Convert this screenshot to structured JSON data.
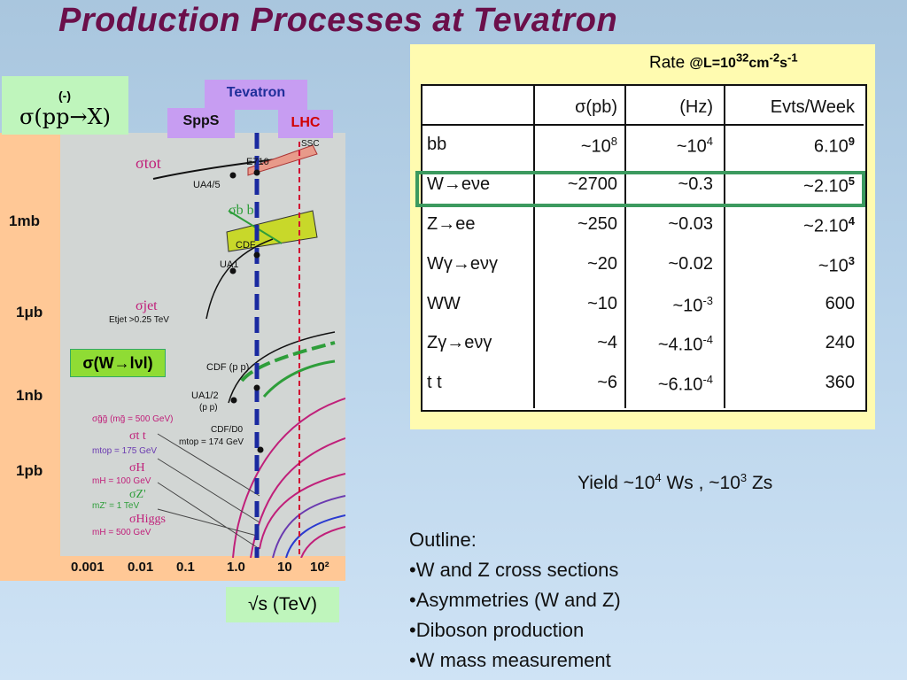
{
  "title": "Production Processes at Tevatron",
  "chart": {
    "sigma_box": {
      "dash": "(-)",
      "text": "σ(pp→X)"
    },
    "tags": {
      "tevatron": "Tevatron",
      "spps": "SppS",
      "lhc": "LHC"
    },
    "y_labels": [
      "1mb",
      "1μb",
      "1nb",
      "1pb"
    ],
    "wlnu_label": "σ(W→lνl)",
    "x_ticks": [
      "0.001",
      "0.01",
      "0.1",
      "1.0",
      "10",
      "10²"
    ],
    "x_axis_label": "√s (TeV)",
    "annotations": {
      "sigma_tot": "σtot",
      "ua45": "UA4/5",
      "e710": "E710",
      "sigma_bb": "σb b",
      "cdf": "CDF",
      "ua1": "UA1",
      "sigma_jet": "σjet",
      "et_jet": "Etjet >0.25 TeV",
      "cdf_pp": "CDF (p p)",
      "ua12": "UA1/2",
      "ua12_pp": "(p p)",
      "sigma_gg": "σg̃g̃ (mg̃ = 500 GeV)",
      "sigma_tt": "σt t",
      "mtop_174": "mtop = 174 GeV",
      "cdf_d0": "CDF/D0",
      "mtop_175": "mtop = 175 GeV",
      "sigma_h": "σH",
      "mh_100": "mH = 100 GeV",
      "sigma_z": "σZ'",
      "mz_1": "mZ' = 1 TeV",
      "sigma_higgs": "σHiggs",
      "mh_500": "mH = 500 GeV",
      "ssc": "SSC"
    },
    "colors": {
      "green": "#2e9e3a",
      "tevatron_line": "#1a2aa0",
      "lhc_line": "#d10030",
      "curve_magenta": "#c0207a"
    }
  },
  "table": {
    "rate_header": {
      "rate": "Rate ",
      "cond": "@L=10",
      "exp1": "32",
      "unit": "cm",
      "exp2": "-2",
      "s": "s",
      "exp3": "-1"
    },
    "columns": [
      "",
      "σ(pb)",
      "(Hz)",
      "Evts/Week"
    ],
    "rows": [
      {
        "process": "bb",
        "sigma_base": "~10",
        "sigma_exp": "8",
        "hz_base": "~10",
        "hz_exp": "4",
        "evts_base": "6.10",
        "evts_exp": "9"
      },
      {
        "process": "W→eνe",
        "sigma_base": "~2700",
        "sigma_exp": "",
        "hz_base": "~0.3",
        "hz_exp": "",
        "evts_base": "~2.10",
        "evts_exp": "5"
      },
      {
        "process": "Z→ee",
        "sigma_base": "~250",
        "sigma_exp": "",
        "hz_base": "~0.03",
        "hz_exp": "",
        "evts_base": "~2.10",
        "evts_exp": "4"
      },
      {
        "process": "Wγ→eνγ",
        "sigma_base": "~20",
        "sigma_exp": "",
        "hz_base": "~0.02",
        "hz_exp": "",
        "evts_base": "~10",
        "evts_exp": "3"
      },
      {
        "process": "WW",
        "sigma_base": "~10",
        "sigma_exp": "",
        "hz_base": "~10",
        "hz_exp": "-3",
        "evts_base": "600",
        "evts_exp": ""
      },
      {
        "process": "Zγ→eνγ",
        "sigma_base": "~4",
        "sigma_exp": "",
        "hz_base": "~4.10",
        "hz_exp": "-4",
        "evts_base": "240",
        "evts_exp": ""
      },
      {
        "process": "t t",
        "sigma_base": "~6",
        "sigma_exp": "",
        "hz_base": "~6.10",
        "hz_exp": "-4",
        "evts_base": "360",
        "evts_exp": ""
      }
    ]
  },
  "yield": {
    "a": "Yield ~10",
    "a_exp": "4",
    "b": " Ws , ~10",
    "b_exp": "3",
    "c": " Zs"
  },
  "outline": {
    "heading": "Outline:",
    "items": [
      "•W and Z cross sections",
      "•Asymmetries (W and Z)",
      "•Diboson production",
      "•W mass measurement"
    ]
  }
}
